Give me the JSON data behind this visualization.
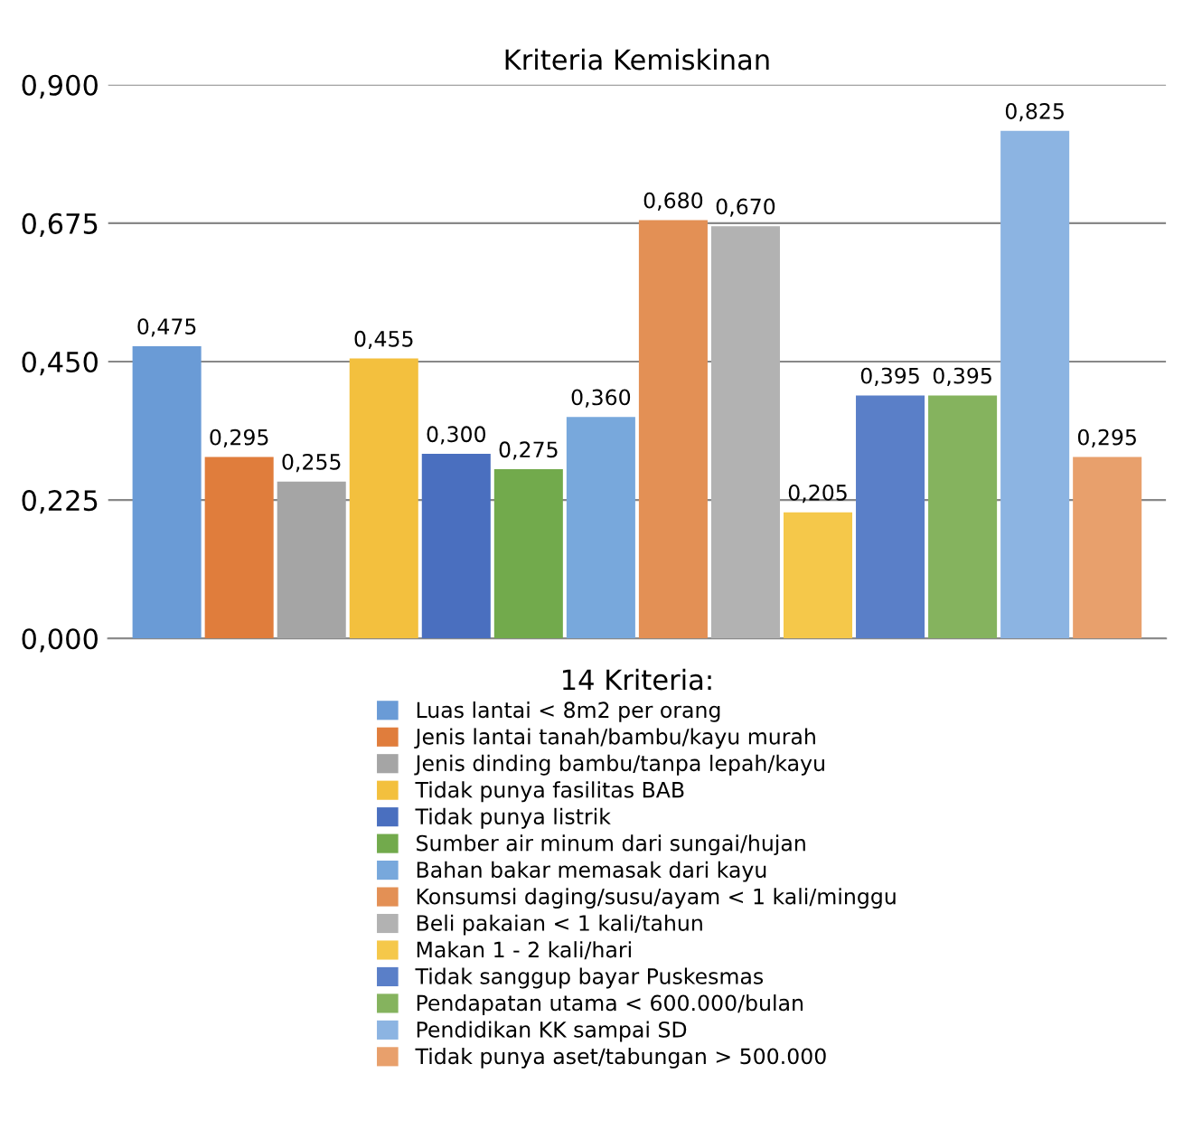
{
  "chart_data": {
    "type": "bar",
    "title": "Kriteria Kemiskinan",
    "legend_title": "14 Kriteria:",
    "categories": [
      null
    ],
    "series": [
      {
        "name": "Luas lantai < 8m2 per orang",
        "color": "#6a9bd6",
        "values": [
          0.475
        ],
        "value_labels": [
          "0,475"
        ]
      },
      {
        "name": "Jenis lantai tanah/bambu/kayu murah",
        "color": "#e07d3c",
        "values": [
          0.295
        ],
        "value_labels": [
          "0,295"
        ]
      },
      {
        "name": "Jenis dinding bambu/tanpa lepah/kayu",
        "color": "#a5a5a5",
        "values": [
          0.255
        ],
        "value_labels": [
          "0,255"
        ]
      },
      {
        "name": "Tidak punya fasilitas BAB",
        "color": "#f3c03e",
        "values": [
          0.455
        ],
        "value_labels": [
          "0,455"
        ]
      },
      {
        "name": "Tidak punya listrik",
        "color": "#4a6fbf",
        "values": [
          0.3
        ],
        "value_labels": [
          "0,300"
        ]
      },
      {
        "name": "Sumber air minum dari sungai/hujan",
        "color": "#72aa4c",
        "values": [
          0.275
        ],
        "value_labels": [
          "0,275"
        ]
      },
      {
        "name": "Bahan bakar memasak dari kayu",
        "color": "#78a8dc",
        "values": [
          0.36
        ],
        "value_labels": [
          "0,360"
        ]
      },
      {
        "name": "Konsumsi daging/susu/ayam < 1 kali/minggu",
        "color": "#e39055",
        "values": [
          0.68
        ],
        "value_labels": [
          "0,680"
        ]
      },
      {
        "name": "Beli pakaian < 1 kali/tahun",
        "color": "#b2b2b2",
        "values": [
          0.67
        ],
        "value_labels": [
          "0,670"
        ]
      },
      {
        "name": "Makan 1 - 2 kali/hari",
        "color": "#f5c84a",
        "values": [
          0.205
        ],
        "value_labels": [
          "0,205"
        ]
      },
      {
        "name": "Tidak sanggup bayar Puskesmas",
        "color": "#5a7fc8",
        "values": [
          0.395
        ],
        "value_labels": [
          "0,395"
        ]
      },
      {
        "name": "Pendapatan utama < 600.000/bulan",
        "color": "#85b35e",
        "values": [
          0.395
        ],
        "value_labels": [
          "0,395"
        ]
      },
      {
        "name": "Pendidikan KK sampai SD",
        "color": "#8cb4e2",
        "values": [
          0.825
        ],
        "value_labels": [
          "0,825"
        ]
      },
      {
        "name": "Tidak punya aset/tabungan > 500.000",
        "color": "#e8a06c",
        "values": [
          0.295
        ],
        "value_labels": [
          "0,295"
        ]
      }
    ],
    "ylim": [
      0,
      0.9
    ],
    "yticks": [
      {
        "value": 0,
        "label": "0,000"
      },
      {
        "value": 0.225,
        "label": "0,225"
      },
      {
        "value": 0.45,
        "label": "0,450"
      },
      {
        "value": 0.675,
        "label": "0,675"
      },
      {
        "value": 0.9,
        "label": "0,900"
      }
    ],
    "grid": "y",
    "legend": "bottom",
    "tick_labels": "y"
  }
}
